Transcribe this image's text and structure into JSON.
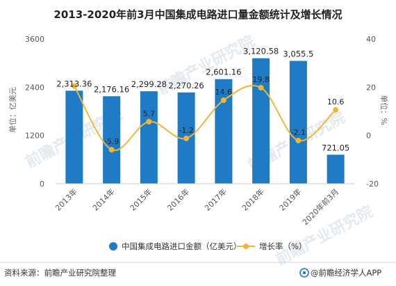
{
  "chart_data": {
    "type": "bar+line",
    "title": "2013-2020年前3月中国集成电路进口量金额统计及增长情况",
    "categories": [
      "2013年",
      "2014年",
      "2015年",
      "2016年",
      "2017年",
      "2018年",
      "2019年",
      "2020年前3月"
    ],
    "series": [
      {
        "name": "中国集成电路进口金额（亿美元）",
        "type": "bar",
        "axis": "left",
        "color": "#1f7bc4",
        "values": [
          2313.36,
          2176.16,
          2299.28,
          2270.26,
          2601.16,
          3120.58,
          3055.5,
          721.05
        ],
        "labels": [
          "2,313.36",
          "2,176.16",
          "2,299.28",
          "2,270.26",
          "2,601.16",
          "3,120.58",
          "3,055.5",
          "721.05"
        ]
      },
      {
        "name": "增长率（%）",
        "type": "line",
        "axis": "right",
        "color": "#f2b637",
        "values": [
          20.5,
          -5.9,
          5.7,
          -1.2,
          14.6,
          19.8,
          -2.1,
          10.6
        ],
        "labels": [
          "",
          "-5.9",
          "5.7",
          "-1.2",
          "14.6",
          "19.8",
          "-2.1",
          "10.6"
        ]
      }
    ],
    "ylabel_left": "单位：亿美元",
    "ylabel_right": "单位：%",
    "ylim_left": [
      0,
      3600
    ],
    "yticks_left": [
      0,
      1200,
      2400,
      3600
    ],
    "ylim_right": [
      -20,
      40
    ],
    "yticks_right": [
      -20,
      0,
      20,
      40
    ],
    "grid": false,
    "legend_placement": "bottom-center"
  },
  "footer": {
    "source": "资料来源：前瞻产业研究院整理",
    "brand": "@前瞻经济学人APP"
  },
  "watermark": "前瞻产业研究院"
}
